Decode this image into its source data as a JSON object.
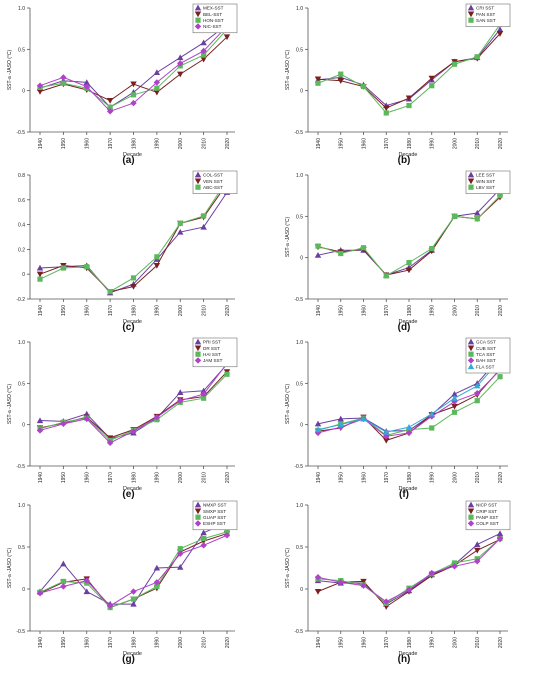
{
  "chart_data": [
    {
      "type": "line",
      "panel_label": "(a)",
      "xlabel": "Decade",
      "ylabel": "SST-a -JASO (°C)",
      "ylim": [
        -0.5,
        1.0
      ],
      "y_ticks": [
        "-0.5",
        "0",
        "0.5",
        "1.0"
      ],
      "x": [
        "1940",
        "1950",
        "1960",
        "1970",
        "1980",
        "1990",
        "2000",
        "2010",
        "2020"
      ],
      "legend_position": "top-right",
      "series": [
        {
          "name": "MEX-SST",
          "color": "#6b3fa0",
          "marker": "triangle-up",
          "values": [
            0.03,
            0.12,
            0.1,
            -0.2,
            -0.02,
            0.22,
            0.4,
            0.58,
            0.8
          ]
        },
        {
          "name": "BEL-SST",
          "color": "#7a2020",
          "marker": "triangle-down",
          "values": [
            -0.01,
            0.08,
            0.01,
            -0.12,
            0.08,
            -0.02,
            0.2,
            0.38,
            0.65
          ]
        },
        {
          "name": "HON-SST",
          "color": "#5cb85c",
          "marker": "square",
          "values": [
            0.04,
            0.09,
            0.03,
            -0.2,
            -0.05,
            0.03,
            0.3,
            0.43,
            0.74
          ]
        },
        {
          "name": "NIC-SST",
          "color": "#b041c9",
          "marker": "diamond",
          "values": [
            0.06,
            0.16,
            0.05,
            -0.25,
            -0.15,
            0.1,
            0.33,
            0.48,
            0.78
          ]
        }
      ]
    },
    {
      "type": "line",
      "panel_label": "(b)",
      "xlabel": "Decade",
      "ylabel": "SST-a -JASO (°C)",
      "ylim": [
        -0.5,
        1.0
      ],
      "y_ticks": [
        "-0.5",
        "0",
        "0.5",
        "1.0"
      ],
      "x": [
        "1940",
        "1950",
        "1960",
        "1970",
        "1980",
        "1990",
        "2000",
        "2010",
        "2020"
      ],
      "legend_position": "top-right",
      "series": [
        {
          "name": "CRI SST",
          "color": "#6b3fa0",
          "marker": "triangle-up",
          "values": [
            0.13,
            0.16,
            0.07,
            -0.18,
            -0.1,
            0.13,
            0.35,
            0.4,
            0.74
          ]
        },
        {
          "name": "PAN SST",
          "color": "#7a2020",
          "marker": "triangle-down",
          "values": [
            0.14,
            0.12,
            0.05,
            -0.21,
            -0.09,
            0.15,
            0.35,
            0.39,
            0.69
          ]
        },
        {
          "name": "SAN SST",
          "color": "#5cb85c",
          "marker": "square",
          "values": [
            0.09,
            0.2,
            0.05,
            -0.27,
            -0.18,
            0.06,
            0.32,
            0.41,
            0.8
          ]
        }
      ]
    },
    {
      "type": "line",
      "panel_label": "(c)",
      "xlabel": "Decade",
      "ylabel": "",
      "ylim": [
        -0.2,
        0.8
      ],
      "y_ticks": [
        "-0.2",
        "0",
        "0.2",
        "0.4",
        "0.6",
        "0.8"
      ],
      "x": [
        "1940",
        "1950",
        "1960",
        "1970",
        "1980",
        "1990",
        "2000",
        "2010",
        "2020"
      ],
      "legend_position": "top-right",
      "series": [
        {
          "name": "COL-SST",
          "color": "#6b3fa0",
          "marker": "triangle-up",
          "values": [
            0.05,
            0.06,
            0.07,
            -0.15,
            -0.08,
            0.12,
            0.34,
            0.38,
            0.66
          ]
        },
        {
          "name": "VEN SST",
          "color": "#7a2020",
          "marker": "triangle-down",
          "values": [
            0.0,
            0.07,
            0.05,
            -0.14,
            -0.1,
            0.07,
            0.41,
            0.46,
            0.73
          ]
        },
        {
          "name": "ABC-SST",
          "color": "#5cb85c",
          "marker": "square",
          "values": [
            -0.04,
            0.05,
            0.06,
            -0.14,
            -0.03,
            0.14,
            0.41,
            0.47,
            0.76
          ]
        }
      ]
    },
    {
      "type": "line",
      "panel_label": "(d)",
      "xlabel": "Decade",
      "ylabel": "SST-a -JASO (°C)",
      "ylim": [
        -0.5,
        1.0
      ],
      "y_ticks": [
        "-0.5",
        "0",
        "0.5",
        "1.0"
      ],
      "x": [
        "1940",
        "1950",
        "1960",
        "1970",
        "1980",
        "1990",
        "2000",
        "2010",
        "2020"
      ],
      "legend_position": "top-right",
      "series": [
        {
          "name": "LEE SST",
          "color": "#6b3fa0",
          "marker": "triangle-up",
          "values": [
            0.03,
            0.09,
            0.09,
            -0.21,
            -0.12,
            0.09,
            0.5,
            0.54,
            0.83
          ]
        },
        {
          "name": "WIN SST",
          "color": "#7a2020",
          "marker": "triangle-down",
          "values": [
            0.13,
            0.07,
            0.1,
            -0.21,
            -0.15,
            0.08,
            0.5,
            0.47,
            0.73
          ]
        },
        {
          "name": "LBV SST",
          "color": "#5cb85c",
          "marker": "square",
          "values": [
            0.14,
            0.05,
            0.12,
            -0.22,
            -0.06,
            0.11,
            0.5,
            0.47,
            0.75
          ]
        }
      ]
    },
    {
      "type": "line",
      "panel_label": "(e)",
      "xlabel": "Decade",
      "ylabel": "SST-a -JASO (°C)",
      "ylim": [
        -0.5,
        1.0
      ],
      "y_ticks": [
        "-0.5",
        "0",
        "0.5",
        "1.0"
      ],
      "x": [
        "1940",
        "1950",
        "1960",
        "1970",
        "1980",
        "1990",
        "2000",
        "2010",
        "2020"
      ],
      "legend_position": "top-right",
      "series": [
        {
          "name": "PRI SST",
          "color": "#6b3fa0",
          "marker": "triangle-up",
          "values": [
            0.05,
            0.04,
            0.13,
            -0.17,
            -0.1,
            0.08,
            0.39,
            0.41,
            0.73
          ]
        },
        {
          "name": "DR SST",
          "color": "#7a2020",
          "marker": "triangle-down",
          "values": [
            -0.04,
            0.02,
            0.09,
            -0.16,
            -0.06,
            0.1,
            0.3,
            0.34,
            0.64
          ]
        },
        {
          "name": "HAI SST",
          "color": "#5cb85c",
          "marker": "square",
          "values": [
            -0.05,
            0.03,
            0.08,
            -0.19,
            -0.07,
            0.06,
            0.27,
            0.32,
            0.61
          ]
        },
        {
          "name": "JAM SST",
          "color": "#b041c9",
          "marker": "diamond",
          "values": [
            -0.07,
            0.01,
            0.07,
            -0.22,
            -0.08,
            0.09,
            0.29,
            0.37,
            0.74
          ]
        }
      ]
    },
    {
      "type": "line",
      "panel_label": "(f)",
      "xlabel": "Decade",
      "ylabel": "SST-a -JASO (°C)",
      "ylim": [
        -0.5,
        1.0
      ],
      "y_ticks": [
        "-0.5",
        "0",
        "0.5",
        "1.0"
      ],
      "x": [
        "1940",
        "1950",
        "1960",
        "1970",
        "1980",
        "1990",
        "2000",
        "2010",
        "2020"
      ],
      "legend_position": "top-right",
      "series": [
        {
          "name": "GCA SST",
          "color": "#6b3fa0",
          "marker": "triangle-up",
          "values": [
            0.01,
            0.07,
            0.08,
            -0.08,
            -0.07,
            0.12,
            0.37,
            0.5,
            0.82
          ]
        },
        {
          "name": "CUB SST",
          "color": "#7a2020",
          "marker": "triangle-down",
          "values": [
            -0.08,
            -0.04,
            0.09,
            -0.19,
            -0.1,
            0.12,
            0.22,
            0.36,
            0.67
          ]
        },
        {
          "name": "TCA SST",
          "color": "#5cb85c",
          "marker": "square",
          "values": [
            -0.07,
            0.01,
            0.08,
            -0.13,
            -0.06,
            -0.04,
            0.15,
            0.29,
            0.58
          ]
        },
        {
          "name": "BAH SST",
          "color": "#b041c9",
          "marker": "diamond",
          "values": [
            -0.1,
            -0.03,
            0.07,
            -0.14,
            -0.1,
            0.1,
            0.28,
            0.38,
            0.66
          ]
        },
        {
          "name": "FLA SST",
          "color": "#35a9d8",
          "marker": "triangle-up",
          "values": [
            -0.06,
            0.0,
            0.07,
            -0.09,
            -0.03,
            0.13,
            0.32,
            0.47,
            0.78
          ]
        }
      ]
    },
    {
      "type": "line",
      "panel_label": "(g)",
      "xlabel": "Decade",
      "ylabel": "SST-a -JASO (°C)",
      "ylim": [
        -0.5,
        1.0
      ],
      "y_ticks": [
        "-0.5",
        "0",
        "0.5",
        "1.0"
      ],
      "x": [
        "1940",
        "1950",
        "1960",
        "1970",
        "1980",
        "1990",
        "2000",
        "2010",
        "2020"
      ],
      "legend_position": "top-right",
      "series": [
        {
          "name": "NMXP SST",
          "color": "#6b3fa0",
          "marker": "triangle-up",
          "values": [
            -0.03,
            0.3,
            -0.03,
            -0.18,
            -0.18,
            0.25,
            0.26,
            0.67,
            0.79
          ]
        },
        {
          "name": "SMXP SST",
          "color": "#7a2020",
          "marker": "triangle-down",
          "values": [
            -0.05,
            0.08,
            0.12,
            -0.22,
            -0.12,
            0.01,
            0.44,
            0.57,
            0.66
          ]
        },
        {
          "name": "GUAP SST",
          "color": "#5cb85c",
          "marker": "square",
          "values": [
            -0.04,
            0.09,
            0.07,
            -0.22,
            -0.12,
            0.03,
            0.48,
            0.6,
            0.68
          ]
        },
        {
          "name": "ESHP SST",
          "color": "#b041c9",
          "marker": "diamond",
          "values": [
            -0.05,
            0.03,
            0.1,
            -0.2,
            -0.03,
            0.08,
            0.42,
            0.52,
            0.64
          ]
        }
      ]
    },
    {
      "type": "line",
      "panel_label": "(h)",
      "xlabel": "Decade",
      "ylabel": "SST-a -JASO (°C)",
      "ylim": [
        -0.5,
        1.0
      ],
      "y_ticks": [
        "-0.5",
        "0",
        "0.5",
        "1.0"
      ],
      "x": [
        "1940",
        "1950",
        "1960",
        "1970",
        "1980",
        "1990",
        "2000",
        "2010",
        "2020"
      ],
      "legend_position": "top-right",
      "series": [
        {
          "name": "NICP SST",
          "color": "#6b3fa0",
          "marker": "triangle-up",
          "values": [
            0.1,
            0.07,
            0.07,
            -0.18,
            -0.02,
            0.17,
            0.29,
            0.53,
            0.66
          ]
        },
        {
          "name": "CRIP SST",
          "color": "#7a2020",
          "marker": "triangle-down",
          "values": [
            -0.03,
            0.08,
            0.09,
            -0.21,
            -0.03,
            0.16,
            0.28,
            0.46,
            0.59
          ]
        },
        {
          "name": "PANP SST",
          "color": "#5cb85c",
          "marker": "square",
          "values": [
            0.12,
            0.1,
            0.05,
            -0.17,
            0.01,
            0.18,
            0.31,
            0.36,
            0.6
          ]
        },
        {
          "name": "COLP SST",
          "color": "#b041c9",
          "marker": "diamond",
          "values": [
            0.14,
            0.08,
            0.04,
            -0.15,
            -0.01,
            0.19,
            0.27,
            0.33,
            0.6
          ]
        }
      ]
    }
  ]
}
